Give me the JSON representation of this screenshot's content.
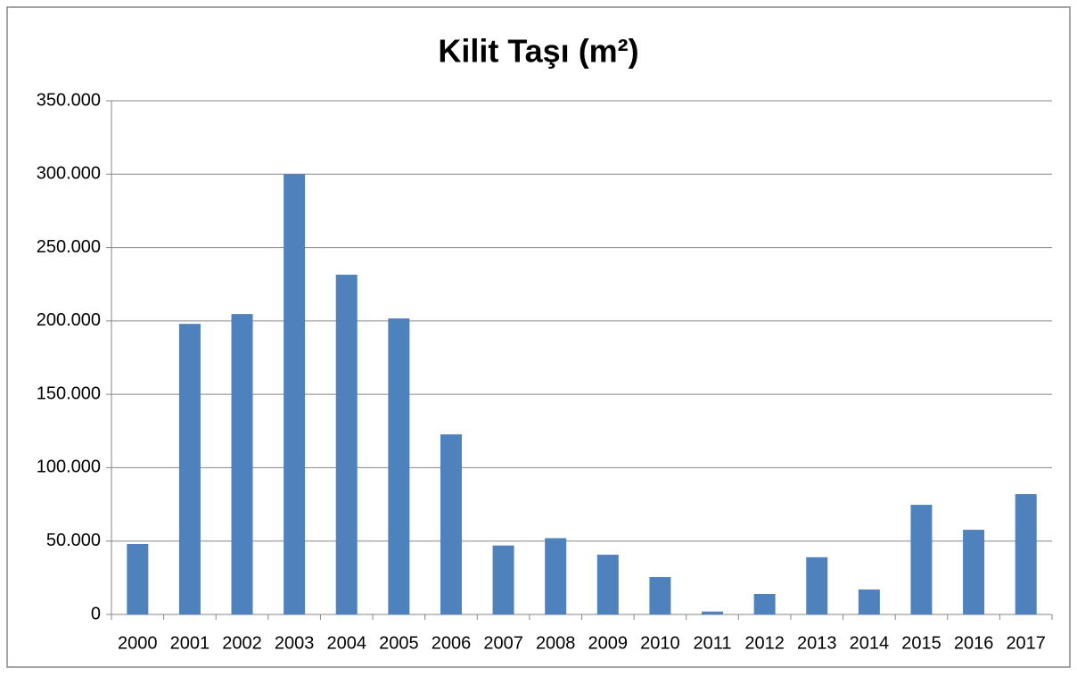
{
  "chart_data": {
    "type": "bar",
    "title": "Kilit Taşı (m²)",
    "categories": [
      "2000",
      "2001",
      "2002",
      "2003",
      "2004",
      "2005",
      "2006",
      "2007",
      "2008",
      "2009",
      "2010",
      "2011",
      "2012",
      "2013",
      "2014",
      "2015",
      "2016",
      "2017"
    ],
    "values": [
      48000,
      198000,
      204700,
      300000,
      231500,
      201700,
      122700,
      47000,
      52000,
      40700,
      25500,
      2000,
      14000,
      39000,
      17000,
      74700,
      57700,
      82000
    ],
    "color": "#4f81bd",
    "ylim": [
      0,
      350000
    ],
    "yticks": [
      0,
      {
        "value": 50000,
        "label": "50.000"
      },
      {
        "value": 100000,
        "label": "100.000"
      },
      {
        "value": 150000,
        "label": "150.000"
      },
      {
        "value": 200000,
        "label": "200.000"
      },
      {
        "value": 250000,
        "label": "250.000"
      },
      {
        "value": 300000,
        "label": "300.000"
      },
      {
        "value": 350000,
        "label": "350.000"
      }
    ],
    "grid": true
  }
}
